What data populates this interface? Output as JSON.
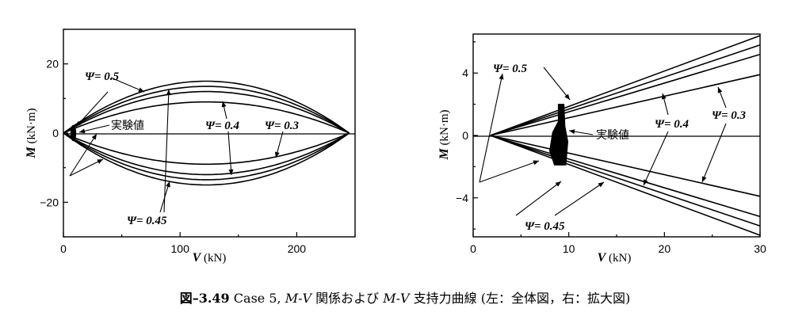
{
  "caption": {
    "number": "図–3.49",
    "text_a": " Case 5, ",
    "text_m1": "M",
    "text_dash1": "-",
    "text_v1": "V",
    "text_b": " 関係および ",
    "text_m2": "M",
    "text_dash2": "-",
    "text_v2": "V",
    "text_c": " 支持力曲線 (左：全体図，右：拡大図)"
  },
  "chart_data": [
    {
      "type": "line",
      "panel": "left",
      "xlabel_var": "V",
      "xlabel_unit": " (kN)",
      "ylabel_var": "M",
      "ylabel_unit": " (kN·m)",
      "xlim": [
        0,
        250
      ],
      "ylim": [
        -30,
        30
      ],
      "x_ticks": [
        0,
        100,
        200
      ],
      "y_ticks": [
        -20,
        0,
        20
      ],
      "curve_shape": "M = ±k·V·(Vmax−V), Vmax = 245",
      "series": [
        {
          "name": "Ψ= 0.5",
          "peak_M": 15.0
        },
        {
          "name": "Ψ= 0.45",
          "peak_M": 13.5
        },
        {
          "name": "Ψ= 0.4",
          "peak_M": 12.0
        },
        {
          "name": "Ψ= 0.3",
          "peak_M": 9.0
        }
      ],
      "vmax": 245,
      "experimental": {
        "label": "実験値",
        "V": [
          7,
          10
        ],
        "M": [
          -2,
          2
        ]
      },
      "annotations": {
        "psi05": "Ψ= 0.5",
        "psi045": "Ψ= 0.45",
        "psi04": "Ψ= 0.4",
        "psi03": "Ψ= 0.3",
        "exp": "実験値"
      }
    },
    {
      "type": "line",
      "panel": "right",
      "xlabel_var": "V",
      "xlabel_unit": " (kN)",
      "ylabel_var": "M",
      "ylabel_unit": " (kN·m)",
      "xlim": [
        0,
        30
      ],
      "ylim": [
        -6.5,
        6.5
      ],
      "x_ticks": [
        0,
        10,
        20,
        30
      ],
      "y_ticks": [
        -4,
        0,
        4
      ],
      "curve_shape": "M = ±slope·(V − 1.8), straight lines from origin point (1.8, 0)",
      "series": [
        {
          "name": "Ψ= 0.5",
          "M_at_30": 6.4
        },
        {
          "name": "Ψ= 0.45",
          "M_at_30": 5.8
        },
        {
          "name": "Ψ= 0.4",
          "M_at_30": 5.2
        },
        {
          "name": "Ψ= 0.3",
          "M_at_30": 3.9
        }
      ],
      "v_origin": 1.8,
      "experimental": {
        "label": "実験値",
        "V": [
          8,
          10
        ],
        "M": [
          -1.9,
          2.0
        ]
      },
      "annotations": {
        "psi05": "Ψ= 0.5",
        "psi045": "Ψ= 0.45",
        "psi04": "Ψ= 0.4",
        "psi03": "Ψ= 0.3",
        "exp": "実験値"
      }
    }
  ]
}
